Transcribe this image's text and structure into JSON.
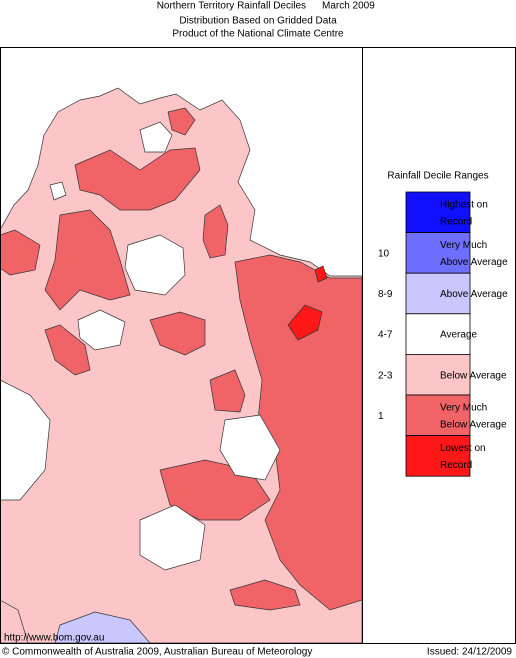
{
  "header": {
    "title": "Northern Territory Rainfall Deciles",
    "period": "March 2009",
    "subtitle_lines": [
      "Distribution Based on Gridded Data",
      "Product of the National Climate Centre"
    ]
  },
  "legend": {
    "title": "Rainfall Decile Ranges",
    "items": [
      {
        "lines": [
          "Highest on",
          "Record"
        ],
        "color": "#1010ff"
      },
      {
        "range": "10",
        "lines": [
          "Very Much",
          "Above Average"
        ],
        "color": "#6e6eff"
      },
      {
        "range": "8-9",
        "lines": [
          "Above Average"
        ],
        "color": "#c8c8ff"
      },
      {
        "range": "4-7",
        "lines": [
          "Average"
        ],
        "color": "#ffffff"
      },
      {
        "range": "2-3",
        "lines": [
          "Below Average"
        ],
        "color": "#fcc6c8"
      },
      {
        "range": "1",
        "lines": [
          "Very Much",
          "Below Average"
        ],
        "color": "#f06468"
      },
      {
        "lines": [
          "Lowest on",
          "Record"
        ],
        "color": "#ff1818"
      }
    ]
  },
  "footer": {
    "url": "http://www.bom.gov.au",
    "copyright": "© Commonwealth of Australia 2009, Australian Bureau of Meteorology",
    "issued": "Issued: 24/12/2009"
  }
}
